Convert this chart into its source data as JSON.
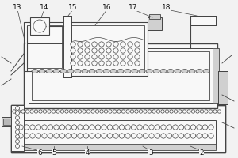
{
  "bg_color": "#f2f2f2",
  "line_color": "#444444",
  "fill_light": "#d0d0d0",
  "fill_medium": "#b8b8b8",
  "fill_white": "#f8f8f8",
  "label_fontsize": 6.5
}
